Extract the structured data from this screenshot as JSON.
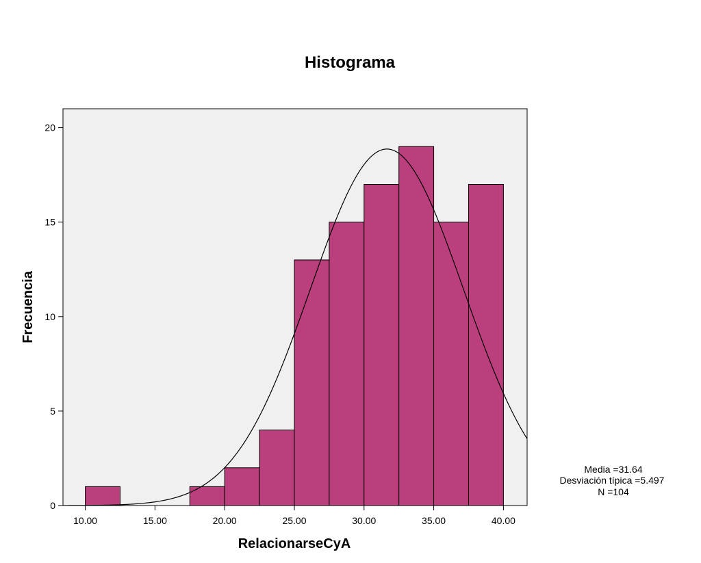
{
  "chart_data": {
    "type": "bar",
    "title": "Histograma",
    "xlabel": "RelacionarseCyA",
    "ylabel": "Frecuencia",
    "bin_width": 2.5,
    "bins": [
      {
        "start": 10.0,
        "end": 12.5,
        "count": 1
      },
      {
        "start": 12.5,
        "end": 15.0,
        "count": 0
      },
      {
        "start": 15.0,
        "end": 17.5,
        "count": 0
      },
      {
        "start": 17.5,
        "end": 20.0,
        "count": 1
      },
      {
        "start": 20.0,
        "end": 22.5,
        "count": 2
      },
      {
        "start": 22.5,
        "end": 25.0,
        "count": 4
      },
      {
        "start": 25.0,
        "end": 27.5,
        "count": 13
      },
      {
        "start": 27.5,
        "end": 30.0,
        "count": 15
      },
      {
        "start": 30.0,
        "end": 32.5,
        "count": 17
      },
      {
        "start": 32.5,
        "end": 35.0,
        "count": 19
      },
      {
        "start": 35.0,
        "end": 37.5,
        "count": 15
      },
      {
        "start": 37.5,
        "end": 40.0,
        "count": 17
      }
    ],
    "xlim": [
      8.4,
      41.7
    ],
    "ylim": [
      0,
      21
    ],
    "x_ticks": [
      10,
      15,
      20,
      25,
      30,
      35,
      40
    ],
    "x_tick_labels": [
      "10.00",
      "15.00",
      "20.00",
      "25.00",
      "30.00",
      "35.00",
      "40.00"
    ],
    "y_ticks": [
      0,
      5,
      10,
      15,
      20
    ],
    "y_tick_labels": [
      "0",
      "5",
      "10",
      "15",
      "20"
    ],
    "normal_curve": {
      "mean": 31.64,
      "std": 5.497,
      "n": 104
    },
    "stats_lines": [
      "Media =31.64",
      "Desviación típica =5.497",
      "N =104"
    ],
    "colors": {
      "bar_fill": "#bb3f7d",
      "bar_stroke": "#000000",
      "plot_background": "#f0f0f0",
      "curve": "#000000"
    },
    "grid": false,
    "legend": "right"
  }
}
